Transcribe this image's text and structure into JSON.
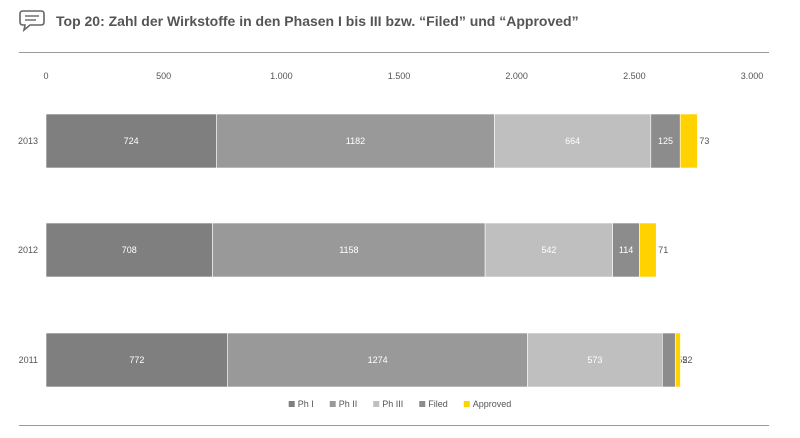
{
  "header": {
    "title": "Top 20: Zahl der Wirkstoffe in den Phasen I bis III bzw. “Filed” und “Approved”",
    "icon": "speech-bubble-icon"
  },
  "chart_data": {
    "type": "bar",
    "orientation": "horizontal",
    "stacked": true,
    "categories": [
      "2013",
      "2012",
      "2011"
    ],
    "series": [
      {
        "name": "Ph I",
        "values": [
          724,
          708,
          772
        ],
        "color": "#7f7f7f",
        "label_color": "#ffffff"
      },
      {
        "name": "Ph II",
        "values": [
          1182,
          1158,
          1274
        ],
        "color": "#999999",
        "label_color": "#ffffff"
      },
      {
        "name": "Ph III",
        "values": [
          664,
          542,
          573
        ],
        "color": "#bfbfbf",
        "label_color": "#ffffff"
      },
      {
        "name": "Filed",
        "values": [
          125,
          114,
          55
        ],
        "color": "#8c8c8c",
        "label_color": "#ffffff"
      },
      {
        "name": "Approved",
        "values": [
          73,
          71,
          22
        ],
        "color": "#ffd200",
        "label_color": "#7f7f7f"
      }
    ],
    "xlim": [
      0,
      3000
    ],
    "x_ticks": [
      0,
      500,
      1000,
      1500,
      2000,
      2500,
      3000
    ],
    "x_tick_labels": [
      "0",
      "500",
      "1.000",
      "1.500",
      "2.000",
      "2.500",
      "3.000"
    ],
    "x_axis_position": "top",
    "grid": false,
    "legend_position": "bottom-center"
  }
}
